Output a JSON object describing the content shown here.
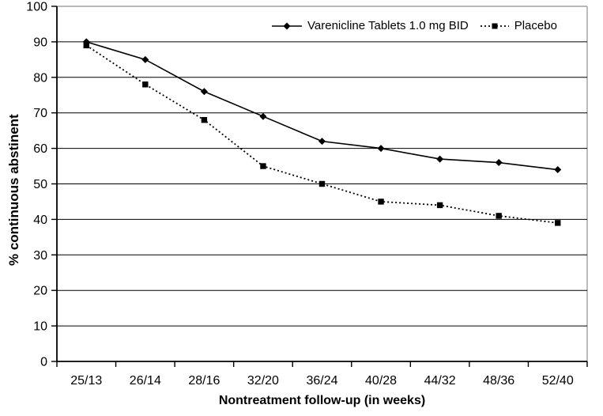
{
  "chart_data": {
    "type": "line",
    "title": "",
    "categories": [
      "25/13",
      "26/14",
      "28/16",
      "32/20",
      "36/24",
      "40/28",
      "44/32",
      "48/36",
      "52/40"
    ],
    "series": [
      {
        "name": "Varenicline Tablets 1.0 mg BID",
        "values": [
          90,
          85,
          76,
          69,
          62,
          60,
          57,
          56,
          54
        ],
        "marker": "diamond",
        "line_style": "solid",
        "color": "#000000"
      },
      {
        "name": "Placebo",
        "values": [
          89,
          78,
          68,
          55,
          50,
          45,
          44,
          41,
          39
        ],
        "marker": "square",
        "line_style": "dotted",
        "color": "#000000"
      }
    ],
    "xlabel": "Nontreatment follow-up (in weeks)",
    "ylabel": "% continuous abstinent",
    "ylim": [
      0,
      100
    ],
    "y_ticks": [
      0,
      10,
      20,
      30,
      40,
      50,
      60,
      70,
      80,
      90,
      100
    ],
    "grid": "horizontal",
    "legend_position": "top-inside",
    "colors": {
      "axis": "#000000",
      "gridline": "#000000",
      "plot_border": "#a0a0a0",
      "background": "#ffffff",
      "text": "#000000"
    }
  }
}
